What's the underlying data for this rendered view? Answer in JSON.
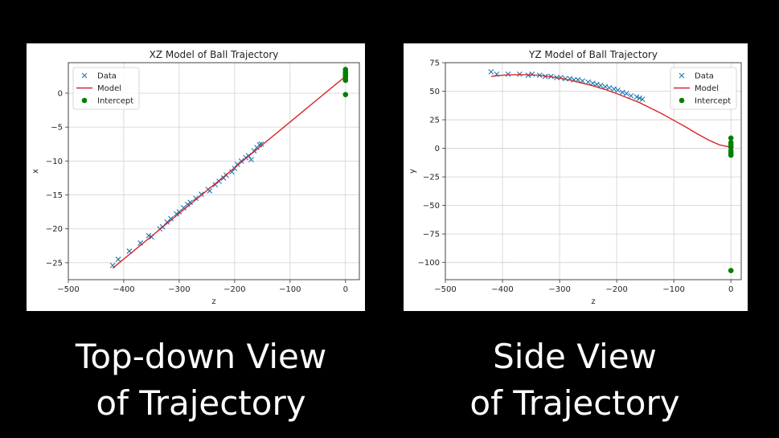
{
  "captions": {
    "left": [
      "Top-down View",
      "of Trajectory"
    ],
    "right": [
      "Side View",
      "of Trajectory"
    ]
  },
  "colors": {
    "background": "#000000",
    "data": "#1f77b4",
    "model": "#d62728",
    "intercept": "#008000"
  },
  "chart_data": [
    {
      "type": "scatter",
      "title": "XZ Model of Ball Trajectory",
      "xlabel": "z",
      "ylabel": "x",
      "xlim": [
        -500,
        25
      ],
      "ylim": [
        -27.5,
        4.5
      ],
      "xticks": [
        -500,
        -400,
        -300,
        -200,
        -100,
        0
      ],
      "yticks": [
        0,
        -5,
        -10,
        -15,
        -20,
        -25
      ],
      "grid": true,
      "legend_position": "top-left",
      "legend": [
        "Data",
        "Model",
        "Intercept"
      ],
      "series": [
        {
          "name": "Data",
          "marker": "x",
          "points": [
            [
              -420,
              -25.4
            ],
            [
              -410,
              -24.5
            ],
            [
              -390,
              -23.3
            ],
            [
              -370,
              -22.1
            ],
            [
              -355,
              -21.0
            ],
            [
              -350,
              -21.2
            ],
            [
              -335,
              -20.0
            ],
            [
              -330,
              -19.7
            ],
            [
              -322,
              -19.0
            ],
            [
              -315,
              -18.5
            ],
            [
              -305,
              -17.8
            ],
            [
              -300,
              -17.5
            ],
            [
              -292,
              -16.9
            ],
            [
              -285,
              -16.4
            ],
            [
              -280,
              -16.1
            ],
            [
              -270,
              -15.5
            ],
            [
              -260,
              -14.9
            ],
            [
              -248,
              -14.2
            ],
            [
              -245,
              -14.4
            ],
            [
              -235,
              -13.5
            ],
            [
              -228,
              -13.0
            ],
            [
              -220,
              -12.5
            ],
            [
              -215,
              -12.1
            ],
            [
              -205,
              -11.6
            ],
            [
              -200,
              -11.1
            ],
            [
              -195,
              -10.5
            ],
            [
              -188,
              -10.0
            ],
            [
              -180,
              -9.5
            ],
            [
              -175,
              -9.2
            ],
            [
              -170,
              -9.8
            ],
            [
              -165,
              -8.5
            ],
            [
              -160,
              -8.0
            ],
            [
              -155,
              -7.6
            ],
            [
              -152,
              -7.5
            ]
          ]
        },
        {
          "name": "Model",
          "marker": "line",
          "points": [
            [
              -420,
              -25.8
            ],
            [
              0,
              2.5
            ]
          ]
        },
        {
          "name": "Intercept",
          "marker": "dot",
          "points": [
            [
              0,
              3.5
            ],
            [
              0,
              3.2
            ],
            [
              0,
              3.0
            ],
            [
              0,
              2.8
            ],
            [
              0,
              2.6
            ],
            [
              0,
              2.4
            ],
            [
              0,
              2.0
            ],
            [
              0,
              1.9
            ],
            [
              0,
              -0.2
            ]
          ]
        }
      ]
    },
    {
      "type": "scatter",
      "title": "YZ Model of Ball Trajectory",
      "xlabel": "z",
      "ylabel": "y",
      "xlim": [
        -500,
        18
      ],
      "ylim": [
        -115,
        75
      ],
      "xticks": [
        -500,
        -400,
        -300,
        -200,
        -100,
        0
      ],
      "yticks": [
        75,
        50,
        25,
        0,
        -25,
        -50,
        -75,
        -100
      ],
      "grid": true,
      "legend_position": "top-right",
      "legend": [
        "Data",
        "Model",
        "Intercept"
      ],
      "series": [
        {
          "name": "Data",
          "marker": "x",
          "points": [
            [
              -420,
              67
            ],
            [
              -410,
              65
            ],
            [
              -390,
              65
            ],
            [
              -370,
              65
            ],
            [
              -355,
              64
            ],
            [
              -348,
              65
            ],
            [
              -335,
              64
            ],
            [
              -325,
              63
            ],
            [
              -315,
              63
            ],
            [
              -305,
              62
            ],
            [
              -298,
              62
            ],
            [
              -290,
              61
            ],
            [
              -282,
              61
            ],
            [
              -275,
              60
            ],
            [
              -268,
              60
            ],
            [
              -260,
              59
            ],
            [
              -250,
              58
            ],
            [
              -242,
              57
            ],
            [
              -235,
              56
            ],
            [
              -228,
              55
            ],
            [
              -220,
              54
            ],
            [
              -213,
              53
            ],
            [
              -205,
              52
            ],
            [
              -198,
              51
            ],
            [
              -190,
              49
            ],
            [
              -183,
              48
            ],
            [
              -175,
              46
            ],
            [
              -165,
              45
            ],
            [
              -160,
              44
            ],
            [
              -155,
              43
            ]
          ]
        },
        {
          "name": "Model",
          "marker": "line",
          "points": [
            [
              -420,
              63
            ],
            [
              -400,
              64
            ],
            [
              -380,
              64.5
            ],
            [
              -360,
              64.5
            ],
            [
              -340,
              64
            ],
            [
              -320,
              63
            ],
            [
              -300,
              61.5
            ],
            [
              -280,
              59.5
            ],
            [
              -260,
              57
            ],
            [
              -240,
              54.5
            ],
            [
              -220,
              51.5
            ],
            [
              -200,
              48
            ],
            [
              -180,
              44
            ],
            [
              -160,
              40
            ],
            [
              -140,
              35
            ],
            [
              -120,
              30
            ],
            [
              -100,
              24.5
            ],
            [
              -80,
              19
            ],
            [
              -60,
              13
            ],
            [
              -40,
              7.5
            ],
            [
              -20,
              3
            ],
            [
              0,
              1
            ]
          ]
        },
        {
          "name": "Intercept",
          "marker": "dot",
          "points": [
            [
              0,
              9
            ],
            [
              0,
              5
            ],
            [
              0,
              3
            ],
            [
              0,
              1
            ],
            [
              0,
              -2
            ],
            [
              0,
              -4
            ],
            [
              0,
              -6
            ],
            [
              0,
              -107
            ]
          ]
        }
      ]
    }
  ]
}
